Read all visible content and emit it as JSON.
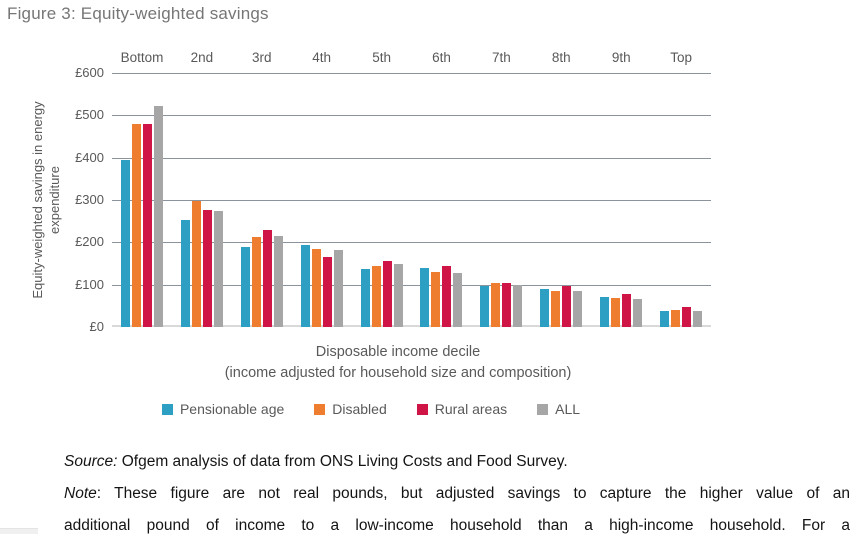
{
  "title": "Figure 3: Equity-weighted savings",
  "chart_data": {
    "type": "bar",
    "categories": [
      "Bottom",
      "2nd",
      "3rd",
      "4th",
      "5th",
      "6th",
      "7th",
      "8th",
      "9th",
      "Top"
    ],
    "series": [
      {
        "name": "Pensionable age",
        "color": "#2d9fc2",
        "values": [
          395,
          253,
          188,
          193,
          136,
          139,
          98,
          90,
          71,
          37
        ]
      },
      {
        "name": "Disabled",
        "color": "#ee7d2f",
        "values": [
          480,
          298,
          212,
          185,
          143,
          131,
          103,
          86,
          68,
          40
        ]
      },
      {
        "name": "Rural areas",
        "color": "#cf1446",
        "values": [
          480,
          276,
          230,
          165,
          157,
          144,
          104,
          97,
          78,
          48
        ]
      },
      {
        "name": "ALL",
        "color": "#a6a6a6",
        "values": [
          522,
          274,
          214,
          182,
          149,
          127,
          100,
          85,
          67,
          38
        ]
      }
    ],
    "title": "Figure 3: Equity-weighted savings",
    "xlabel": "Disposable income decile",
    "xlabel_sub": "(income adjusted for household size and composition)",
    "ylabel": "Equity-weighted savings in energy expenditure",
    "ylim": [
      0,
      600
    ],
    "ytick_step": 100,
    "ytick_prefix": "£",
    "grid": "horizontal-only",
    "gridline_color": "#8b939c",
    "zero_line_color": "#d9d9d9",
    "legend_position": "bottom",
    "text_color": "#595959",
    "title_color": "#767676"
  },
  "footer": {
    "source_prefix": "Source:",
    "source_text": " Ofgem analysis of data from ONS Living Costs and Food Survey.",
    "note_prefix": "Note",
    "note_line1": ": These figure are not real pounds, but adjusted savings to capture the higher value of an",
    "note_line2": "additional pound of income to a low-income household than a high-income household. For a"
  }
}
